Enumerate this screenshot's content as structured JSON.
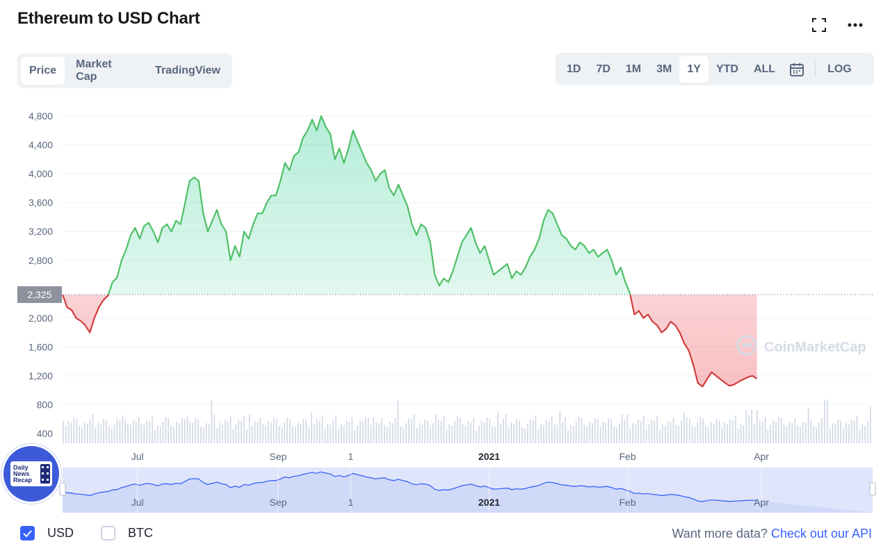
{
  "header": {
    "title": "Ethereum to USD Chart"
  },
  "view_tabs": [
    {
      "label": "Price",
      "active": true
    },
    {
      "label": "Market Cap",
      "active": false
    },
    {
      "label": "TradingView",
      "active": false
    }
  ],
  "range_tabs": [
    {
      "label": "1D",
      "active": false
    },
    {
      "label": "7D",
      "active": false
    },
    {
      "label": "1M",
      "active": false
    },
    {
      "label": "3M",
      "active": false
    },
    {
      "label": "1Y",
      "active": true
    },
    {
      "label": "YTD",
      "active": false
    },
    {
      "label": "ALL",
      "active": false
    }
  ],
  "log_label": "LOG",
  "watermark": "CoinMarketCap",
  "badge": {
    "lines": [
      "Daily",
      "News",
      "Recap"
    ]
  },
  "currency_toggles": [
    {
      "label": "USD",
      "checked": true
    },
    {
      "label": "BTC",
      "checked": false
    }
  ],
  "api": {
    "text": "Want more data?",
    "link": "Check out our API"
  },
  "colors": {
    "up": "#16c784",
    "down": "#ea3943",
    "line_up": "#4fbf67",
    "line_down": "#d13c3c",
    "accent": "#3861fb",
    "volume": "#cfd6e4",
    "navigator_fill": "#dfe5fb"
  },
  "chart_data": {
    "type": "area",
    "baseline": 2325,
    "baseline_label": "2,325",
    "y_ticks": [
      4800,
      4400,
      4000,
      3600,
      3200,
      2800,
      2000,
      1600,
      1200,
      800,
      400
    ],
    "y_tick_labels": [
      "4,800",
      "4,400",
      "4,000",
      "3,600",
      "3,200",
      "2,800",
      "2,000",
      "1,600",
      "1,200",
      "800",
      "400"
    ],
    "x_labels": [
      {
        "label": "Jul",
        "x": 33,
        "bold": false
      },
      {
        "label": "Sep",
        "x": 95,
        "bold": false
      },
      {
        "label": "1",
        "x": 127,
        "bold": false
      },
      {
        "label": "2021",
        "x": 188,
        "bold": true
      },
      {
        "label": "Feb",
        "x": 249,
        "bold": false
      },
      {
        "label": "Apr",
        "x": 308,
        "bold": false
      }
    ],
    "x_range": [
      0,
      357
    ],
    "y_range": [
      400,
      4950
    ],
    "price": [
      [
        0,
        2325
      ],
      [
        2,
        2150
      ],
      [
        4,
        2110
      ],
      [
        6,
        2000
      ],
      [
        8,
        1960
      ],
      [
        10,
        1900
      ],
      [
        12,
        1800
      ],
      [
        14,
        2000
      ],
      [
        16,
        2150
      ],
      [
        18,
        2250
      ],
      [
        20,
        2310
      ],
      [
        22,
        2500
      ],
      [
        24,
        2560
      ],
      [
        26,
        2800
      ],
      [
        28,
        2950
      ],
      [
        30,
        3150
      ],
      [
        32,
        3250
      ],
      [
        34,
        3100
      ],
      [
        36,
        3280
      ],
      [
        38,
        3320
      ],
      [
        40,
        3200
      ],
      [
        42,
        3050
      ],
      [
        44,
        3250
      ],
      [
        46,
        3300
      ],
      [
        48,
        3200
      ],
      [
        50,
        3350
      ],
      [
        52,
        3300
      ],
      [
        54,
        3600
      ],
      [
        56,
        3900
      ],
      [
        58,
        3950
      ],
      [
        60,
        3900
      ],
      [
        62,
        3450
      ],
      [
        64,
        3200
      ],
      [
        66,
        3350
      ],
      [
        68,
        3500
      ],
      [
        70,
        3300
      ],
      [
        72,
        3200
      ],
      [
        74,
        2800
      ],
      [
        76,
        3000
      ],
      [
        78,
        2850
      ],
      [
        80,
        3200
      ],
      [
        82,
        3100
      ],
      [
        84,
        3300
      ],
      [
        86,
        3450
      ],
      [
        88,
        3450
      ],
      [
        90,
        3600
      ],
      [
        92,
        3700
      ],
      [
        94,
        3700
      ],
      [
        96,
        3900
      ],
      [
        98,
        4150
      ],
      [
        100,
        4050
      ],
      [
        102,
        4250
      ],
      [
        104,
        4300
      ],
      [
        106,
        4500
      ],
      [
        108,
        4600
      ],
      [
        110,
        4750
      ],
      [
        112,
        4600
      ],
      [
        114,
        4800
      ],
      [
        116,
        4650
      ],
      [
        118,
        4550
      ],
      [
        120,
        4200
      ],
      [
        122,
        4350
      ],
      [
        124,
        4150
      ],
      [
        126,
        4350
      ],
      [
        128,
        4600
      ],
      [
        130,
        4450
      ],
      [
        132,
        4300
      ],
      [
        134,
        4150
      ],
      [
        136,
        4050
      ],
      [
        138,
        3900
      ],
      [
        140,
        4000
      ],
      [
        142,
        4050
      ],
      [
        144,
        3800
      ],
      [
        146,
        3700
      ],
      [
        148,
        3850
      ],
      [
        150,
        3700
      ],
      [
        152,
        3550
      ],
      [
        154,
        3300
      ],
      [
        156,
        3150
      ],
      [
        158,
        3300
      ],
      [
        160,
        3250
      ],
      [
        162,
        3050
      ],
      [
        164,
        2600
      ],
      [
        166,
        2450
      ],
      [
        168,
        2550
      ],
      [
        170,
        2500
      ],
      [
        172,
        2650
      ],
      [
        174,
        2850
      ],
      [
        176,
        3050
      ],
      [
        178,
        3150
      ],
      [
        180,
        3250
      ],
      [
        182,
        3050
      ],
      [
        184,
        2900
      ],
      [
        186,
        3000
      ],
      [
        188,
        2800
      ],
      [
        190,
        2600
      ],
      [
        192,
        2650
      ],
      [
        194,
        2700
      ],
      [
        196,
        2750
      ],
      [
        198,
        2550
      ],
      [
        200,
        2650
      ],
      [
        202,
        2600
      ],
      [
        204,
        2700
      ],
      [
        206,
        2850
      ],
      [
        208,
        2950
      ],
      [
        210,
        3100
      ],
      [
        212,
        3350
      ],
      [
        214,
        3500
      ],
      [
        216,
        3450
      ],
      [
        218,
        3300
      ],
      [
        220,
        3150
      ],
      [
        222,
        3100
      ],
      [
        224,
        3000
      ],
      [
        226,
        2950
      ],
      [
        228,
        3050
      ],
      [
        230,
        3000
      ],
      [
        232,
        2900
      ],
      [
        234,
        2950
      ],
      [
        236,
        2850
      ],
      [
        238,
        2900
      ],
      [
        240,
        2950
      ],
      [
        242,
        2800
      ],
      [
        244,
        2600
      ],
      [
        246,
        2700
      ],
      [
        248,
        2500
      ],
      [
        250,
        2350
      ],
      [
        252,
        2050
      ],
      [
        254,
        2100
      ],
      [
        256,
        2000
      ],
      [
        258,
        2050
      ],
      [
        260,
        1950
      ],
      [
        262,
        1900
      ],
      [
        264,
        1800
      ],
      [
        266,
        1850
      ],
      [
        268,
        1950
      ],
      [
        270,
        1900
      ],
      [
        272,
        1800
      ],
      [
        274,
        1650
      ],
      [
        276,
        1550
      ],
      [
        278,
        1350
      ],
      [
        280,
        1100
      ],
      [
        282,
        1050
      ],
      [
        284,
        1150
      ],
      [
        286,
        1250
      ],
      [
        288,
        1200
      ],
      [
        290,
        1150
      ],
      [
        292,
        1100
      ],
      [
        294,
        1060
      ],
      [
        296,
        1080
      ],
      [
        298,
        1120
      ],
      [
        300,
        1150
      ],
      [
        302,
        1180
      ],
      [
        304,
        1200
      ],
      [
        306,
        1160
      ]
    ],
    "navigator_range": [
      500,
      5000
    ]
  }
}
